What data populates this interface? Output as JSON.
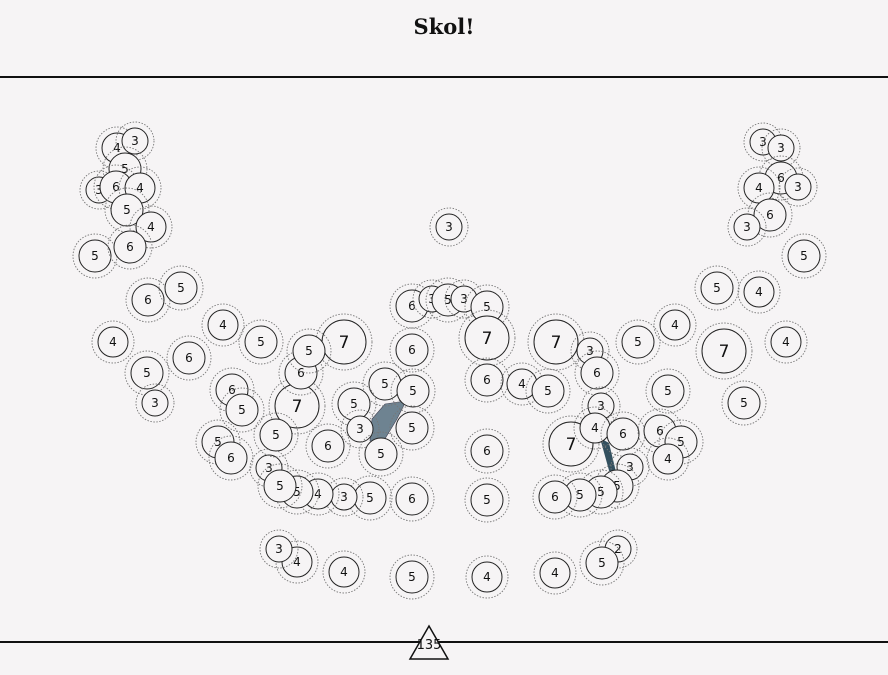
{
  "title": "Skol!",
  "score": "135",
  "colors": {
    "background": "#f6f4f5",
    "stroke": "#222222",
    "dotted": "#777777",
    "link_fill": "#6e8391",
    "link_fill_dark": "#33505f"
  },
  "nodes": [
    {
      "id": "n1",
      "value": "4"
    },
    {
      "id": "n2",
      "value": "3"
    },
    {
      "id": "n3",
      "value": "5"
    },
    {
      "id": "n4",
      "value": "3"
    },
    {
      "id": "n5",
      "value": "6"
    },
    {
      "id": "n6",
      "value": "4"
    },
    {
      "id": "n7",
      "value": "5"
    },
    {
      "id": "n8",
      "value": "4"
    },
    {
      "id": "n9",
      "value": "5"
    },
    {
      "id": "n10",
      "value": "6"
    },
    {
      "id": "n11",
      "value": "3"
    },
    {
      "id": "n12",
      "value": "3"
    },
    {
      "id": "n13",
      "value": "3"
    },
    {
      "id": "n14",
      "value": "6"
    },
    {
      "id": "n15",
      "value": "4"
    },
    {
      "id": "n16",
      "value": "3"
    },
    {
      "id": "n17",
      "value": "6"
    },
    {
      "id": "n18",
      "value": "3"
    },
    {
      "id": "n19",
      "value": "5"
    },
    {
      "id": "n20",
      "value": "5"
    },
    {
      "id": "n21",
      "value": "6"
    },
    {
      "id": "n22",
      "value": "5"
    },
    {
      "id": "n23",
      "value": "4"
    },
    {
      "id": "n24",
      "value": "5"
    },
    {
      "id": "n25",
      "value": "7"
    },
    {
      "id": "n26",
      "value": "6"
    },
    {
      "id": "n27",
      "value": "3"
    },
    {
      "id": "n28",
      "value": "5"
    },
    {
      "id": "n29",
      "value": "3"
    },
    {
      "id": "n30",
      "value": "5"
    },
    {
      "id": "n31",
      "value": "7"
    },
    {
      "id": "n32",
      "value": "6"
    },
    {
      "id": "n33",
      "value": "7"
    },
    {
      "id": "n34",
      "value": "3"
    },
    {
      "id": "n35",
      "value": "6"
    },
    {
      "id": "n36",
      "value": "5"
    },
    {
      "id": "n37",
      "value": "4"
    },
    {
      "id": "n38",
      "value": "7"
    },
    {
      "id": "n39",
      "value": "4"
    },
    {
      "id": "n40",
      "value": "4"
    },
    {
      "id": "n41",
      "value": "6"
    },
    {
      "id": "n42",
      "value": "5"
    },
    {
      "id": "n43",
      "value": "3"
    },
    {
      "id": "n44",
      "value": "6"
    },
    {
      "id": "n45",
      "value": "5"
    },
    {
      "id": "n46",
      "value": "7"
    },
    {
      "id": "n47",
      "value": "6"
    },
    {
      "id": "n48",
      "value": "5"
    },
    {
      "id": "n49",
      "value": "5"
    },
    {
      "id": "n50",
      "value": "5"
    },
    {
      "id": "n51",
      "value": "6"
    },
    {
      "id": "n52",
      "value": "4"
    },
    {
      "id": "n53",
      "value": "5"
    },
    {
      "id": "n54",
      "value": "5"
    },
    {
      "id": "n55",
      "value": "4"
    },
    {
      "id": "n56",
      "value": "7"
    },
    {
      "id": "n57",
      "value": "3"
    },
    {
      "id": "n58",
      "value": "4"
    },
    {
      "id": "n59",
      "value": "6"
    },
    {
      "id": "n60",
      "value": "6"
    },
    {
      "id": "n61",
      "value": "5"
    },
    {
      "id": "n62",
      "value": "4"
    },
    {
      "id": "n63",
      "value": "5"
    },
    {
      "id": "n64",
      "value": "5"
    },
    {
      "id": "n65",
      "value": "3"
    },
    {
      "id": "n66",
      "value": "5"
    },
    {
      "id": "n67",
      "value": "3"
    },
    {
      "id": "n68",
      "value": "5"
    },
    {
      "id": "n69",
      "value": "6"
    },
    {
      "id": "n70",
      "value": "5"
    },
    {
      "id": "n71",
      "value": "6"
    },
    {
      "id": "n72",
      "value": "5"
    },
    {
      "id": "n73",
      "value": "6"
    },
    {
      "id": "n74",
      "value": "5"
    },
    {
      "id": "n75",
      "value": "6"
    },
    {
      "id": "n76",
      "value": "5"
    },
    {
      "id": "n77",
      "value": "3"
    },
    {
      "id": "n78",
      "value": "4"
    },
    {
      "id": "n79",
      "value": "5"
    },
    {
      "id": "n80",
      "value": "5"
    },
    {
      "id": "n81",
      "value": "4"
    },
    {
      "id": "n82",
      "value": "4"
    },
    {
      "id": "n83",
      "value": "2"
    },
    {
      "id": "n84",
      "value": "5"
    }
  ]
}
